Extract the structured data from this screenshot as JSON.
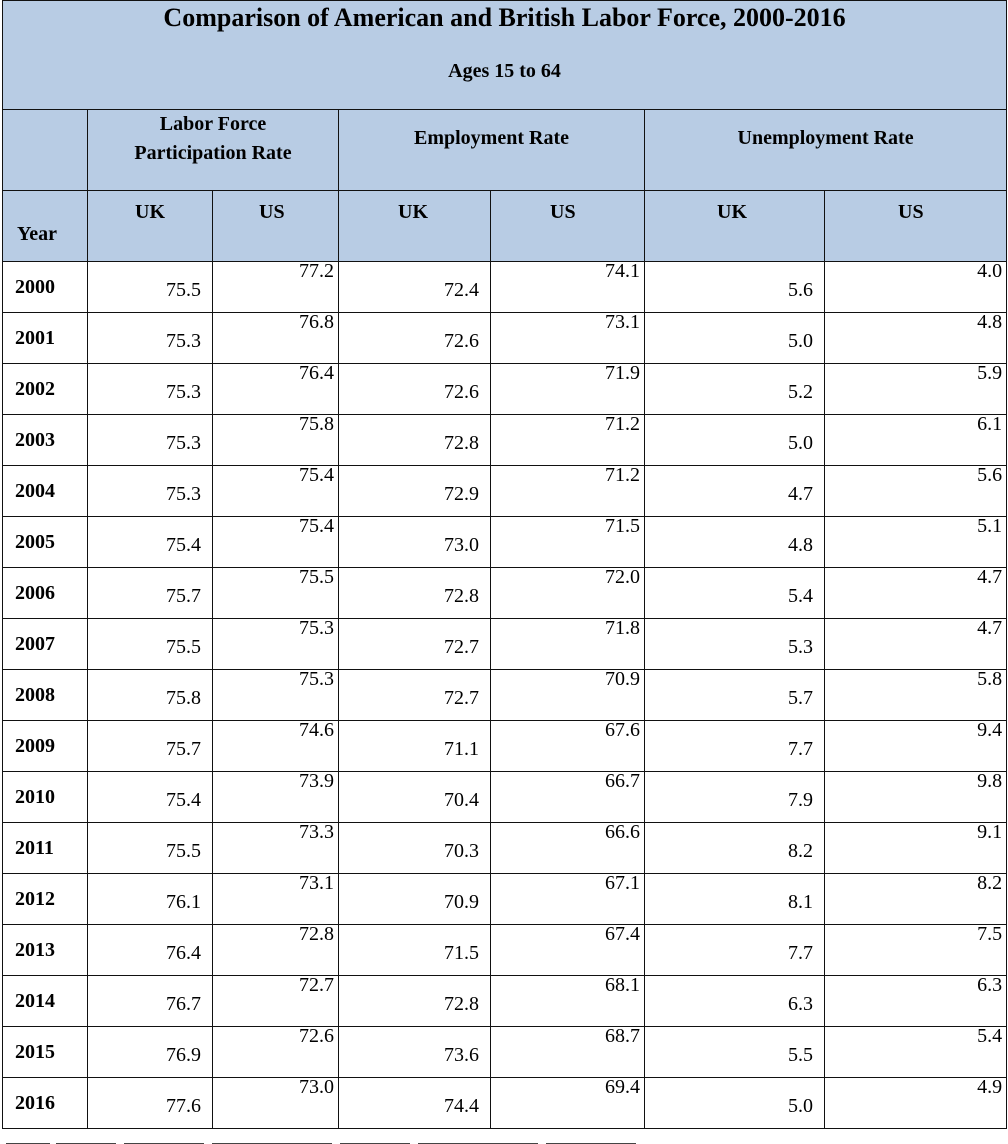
{
  "title": "Comparison of American and British Labor Force, 2000-2016",
  "subtitle": "Ages 15 to 64",
  "groups": {
    "lfpr": [
      "Labor Force",
      "Participation Rate"
    ],
    "emp": "Employment Rate",
    "unemp": "Unemployment Rate"
  },
  "year_header": "Year",
  "sub_headers": [
    "UK",
    "US",
    "UK",
    "US",
    "UK",
    "US"
  ],
  "rows": [
    {
      "year": "2000",
      "vals": [
        "75.5",
        "77.2",
        "72.4",
        "74.1",
        "5.6",
        "4.0"
      ]
    },
    {
      "year": "2001",
      "vals": [
        "75.3",
        "76.8",
        "72.6",
        "73.1",
        "5.0",
        "4.8"
      ]
    },
    {
      "year": "2002",
      "vals": [
        "75.3",
        "76.4",
        "72.6",
        "71.9",
        "5.2",
        "5.9"
      ]
    },
    {
      "year": "2003",
      "vals": [
        "75.3",
        "75.8",
        "72.8",
        "71.2",
        "5.0",
        "6.1"
      ]
    },
    {
      "year": "2004",
      "vals": [
        "75.3",
        "75.4",
        "72.9",
        "71.2",
        "4.7",
        "5.6"
      ]
    },
    {
      "year": "2005",
      "vals": [
        "75.4",
        "75.4",
        "73.0",
        "71.5",
        "4.8",
        "5.1"
      ]
    },
    {
      "year": "2006",
      "vals": [
        "75.7",
        "75.5",
        "72.8",
        "72.0",
        "5.4",
        "4.7"
      ]
    },
    {
      "year": "2007",
      "vals": [
        "75.5",
        "75.3",
        "72.7",
        "71.8",
        "5.3",
        "4.7"
      ]
    },
    {
      "year": "2008",
      "vals": [
        "75.8",
        "75.3",
        "72.7",
        "70.9",
        "5.7",
        "5.8"
      ]
    },
    {
      "year": "2009",
      "vals": [
        "75.7",
        "74.6",
        "71.1",
        "67.6",
        "7.7",
        "9.4"
      ]
    },
    {
      "year": "2010",
      "vals": [
        "75.4",
        "73.9",
        "70.4",
        "66.7",
        "7.9",
        "9.8"
      ]
    },
    {
      "year": "2011",
      "vals": [
        "75.5",
        "73.3",
        "70.3",
        "66.6",
        "8.2",
        "9.1"
      ]
    },
    {
      "year": "2012",
      "vals": [
        "76.1",
        "73.1",
        "70.9",
        "67.1",
        "8.1",
        "8.2"
      ]
    },
    {
      "year": "2013",
      "vals": [
        "76.4",
        "72.8",
        "71.5",
        "67.4",
        "7.7",
        "7.5"
      ]
    },
    {
      "year": "2014",
      "vals": [
        "76.7",
        "72.7",
        "72.8",
        "68.1",
        "6.3",
        "6.3"
      ]
    },
    {
      "year": "2015",
      "vals": [
        "76.9",
        "72.6",
        "73.6",
        "68.7",
        "5.5",
        "5.4"
      ]
    },
    {
      "year": "2016",
      "vals": [
        "77.6",
        "73.0",
        "74.4",
        "69.4",
        "5.0",
        "4.9"
      ]
    }
  ],
  "colors": {
    "header_fill": "#b8cce4",
    "border": "#111111"
  }
}
